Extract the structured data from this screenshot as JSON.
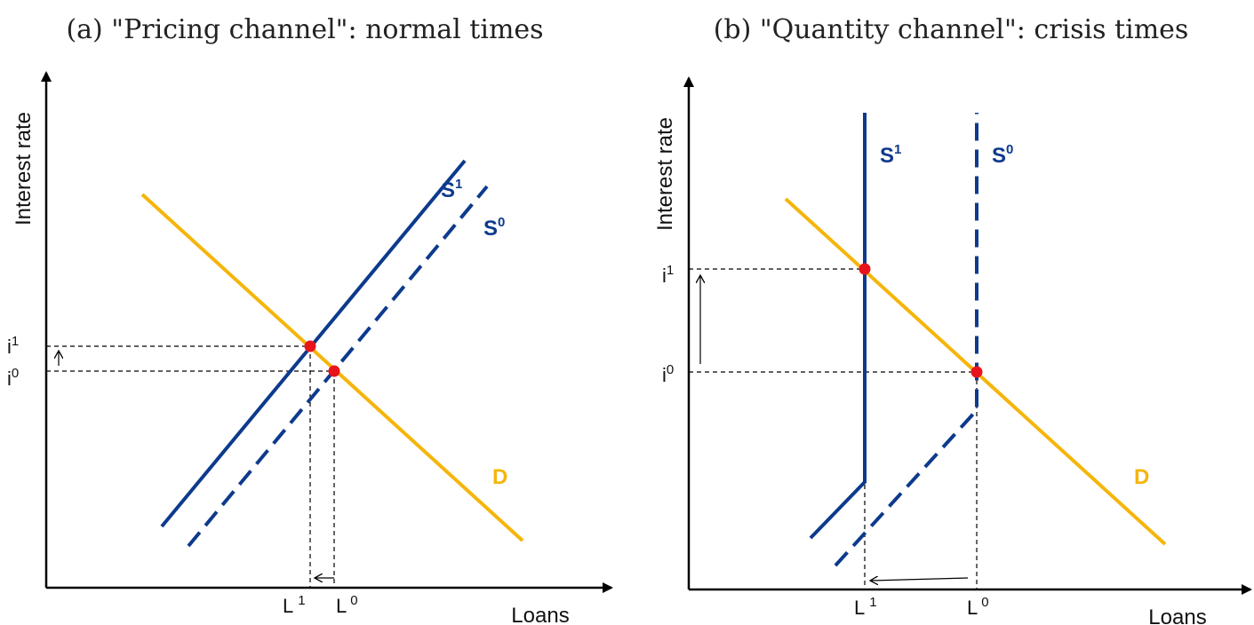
{
  "colors": {
    "supply": "#0d3a8c",
    "demand": "#f5b50a",
    "equilibrium": "#e8141c",
    "axis": "#000000"
  },
  "panels": [
    {
      "title": "(a) \"Pricing channel\": normal times",
      "xlabel": "Loans",
      "ylabel": "Interest rate",
      "i1_base": "i",
      "i1_sup": "1",
      "i0_base": "i",
      "i0_sup": "0",
      "L1_base": "L",
      "L1_sup": "1",
      "L0_base": "L",
      "L0_sup": "0",
      "S1_base": "S",
      "S1_sup": "1",
      "S0_base": "S",
      "S0_sup": "0",
      "D_label": "D"
    },
    {
      "title": "(b) \"Quantity channel\": crisis times",
      "xlabel": "Loans",
      "ylabel": "Interest rate",
      "i1_base": "i",
      "i1_sup": "1",
      "i0_base": "i",
      "i0_sup": "0",
      "L1_base": "L",
      "L1_sup": "1",
      "L0_base": "L",
      "L0_sup": "0",
      "S1_base": "S",
      "S1_sup": "1",
      "S0_base": "S",
      "S0_sup": "0",
      "D_label": "D"
    }
  ]
}
